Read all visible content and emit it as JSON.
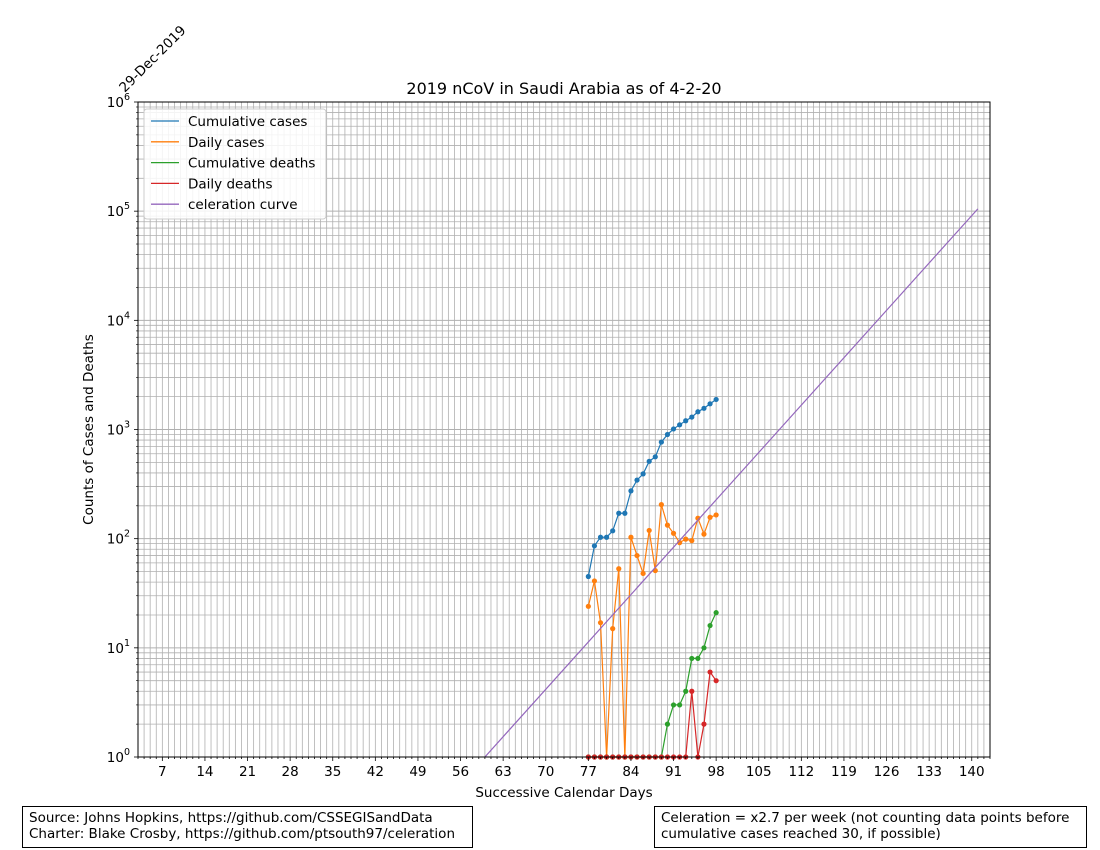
{
  "chart_data": {
    "type": "line",
    "title": "2019 nCoV in Saudi Arabia as of 4-2-20",
    "xlabel": "Successive Calendar Days",
    "ylabel": "Counts of Cases and Deaths",
    "start_date_label": "29-Dec-2019",
    "xlim": [
      3,
      143
    ],
    "ylim": [
      1,
      1000000
    ],
    "yscale": "log",
    "grid": true,
    "legend_position": "upper-left",
    "x_ticks": [
      7,
      14,
      21,
      28,
      35,
      42,
      49,
      56,
      63,
      70,
      77,
      84,
      91,
      98,
      105,
      112,
      119,
      126,
      133,
      140
    ],
    "y_ticks": [
      {
        "value": 1,
        "base": "10",
        "exp": "0"
      },
      {
        "value": 10,
        "base": "10",
        "exp": "1"
      },
      {
        "value": 100,
        "base": "10",
        "exp": "2"
      },
      {
        "value": 1000,
        "base": "10",
        "exp": "3"
      },
      {
        "value": 10000,
        "base": "10",
        "exp": "4"
      },
      {
        "value": 100000,
        "base": "10",
        "exp": "5"
      },
      {
        "value": 1000000,
        "base": "10",
        "exp": "6"
      }
    ],
    "series": [
      {
        "name": "Cumulative cases",
        "color": "#1f77b4",
        "markers": true,
        "x": [
          77,
          78,
          79,
          80,
          81,
          82,
          83,
          84,
          85,
          86,
          87,
          88,
          89,
          90,
          91,
          92,
          93,
          94,
          95,
          96,
          97,
          98
        ],
        "y": [
          45,
          86,
          103,
          103,
          118,
          171,
          171,
          274,
          344,
          392,
          511,
          562,
          767,
          900,
          1012,
          1104,
          1203,
          1299,
          1453,
          1563,
          1720,
          1885
        ]
      },
      {
        "name": "Daily cases",
        "color": "#ff7f0e",
        "markers": true,
        "x": [
          77,
          78,
          79,
          80,
          81,
          82,
          83,
          84,
          85,
          86,
          87,
          88,
          89,
          90,
          91,
          92,
          93,
          94,
          95,
          96,
          97,
          98
        ],
        "y": [
          24,
          41,
          17,
          1,
          15,
          53,
          1,
          103,
          70,
          48,
          119,
          51,
          205,
          133,
          112,
          92,
          99,
          96,
          154,
          110,
          157,
          165
        ]
      },
      {
        "name": "Cumulative deaths",
        "color": "#2ca02c",
        "markers": true,
        "x": [
          77,
          78,
          79,
          80,
          81,
          82,
          83,
          84,
          85,
          86,
          87,
          88,
          89,
          90,
          91,
          92,
          93,
          94,
          95,
          96,
          97,
          98
        ],
        "y": [
          1,
          1,
          1,
          1,
          1,
          1,
          1,
          1,
          1,
          1,
          1,
          1,
          1,
          2,
          3,
          3,
          4,
          8,
          8,
          10,
          16,
          21
        ]
      },
      {
        "name": "Daily deaths",
        "color": "#d62728",
        "markers": true,
        "x": [
          77,
          78,
          79,
          80,
          81,
          82,
          83,
          84,
          85,
          86,
          87,
          88,
          89,
          90,
          91,
          92,
          93,
          94,
          95,
          96,
          97,
          98
        ],
        "y": [
          1,
          1,
          1,
          1,
          1,
          1,
          1,
          1,
          1,
          1,
          1,
          1,
          1,
          1,
          1,
          1,
          1,
          4,
          1,
          2,
          6,
          5
        ]
      },
      {
        "name": "celeration curve",
        "color": "#9467bd",
        "markers": false,
        "x": [
          60,
          141
        ],
        "y": [
          1,
          105000
        ]
      }
    ]
  },
  "notes": {
    "source_text": "Source: Johns Hopkins, https://github.com/CSSEGISandData\nCharter: Blake Crosby, https://github.com/ptsouth97/celeration",
    "celeration_text": "Celeration = x2.7 per week (not counting data points before\ncumulative cases reached 30, if possible)"
  }
}
